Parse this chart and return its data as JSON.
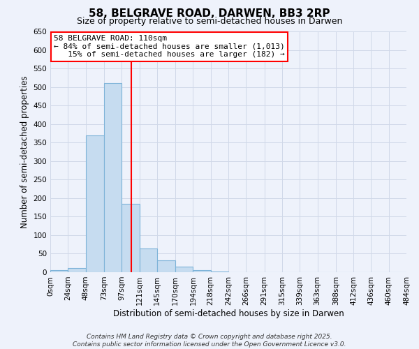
{
  "title": "58, BELGRAVE ROAD, DARWEN, BB3 2RP",
  "subtitle": "Size of property relative to semi-detached houses in Darwen",
  "xlabel": "Distribution of semi-detached houses by size in Darwen",
  "ylabel": "Number of semi-detached properties",
  "bin_edges": [
    0,
    24,
    48,
    73,
    97,
    121,
    145,
    170,
    194,
    218,
    242,
    266,
    291,
    315,
    339,
    363,
    388,
    412,
    436,
    460,
    484
  ],
  "bin_labels": [
    "0sqm",
    "24sqm",
    "48sqm",
    "73sqm",
    "97sqm",
    "121sqm",
    "145sqm",
    "170sqm",
    "194sqm",
    "218sqm",
    "242sqm",
    "266sqm",
    "291sqm",
    "315sqm",
    "339sqm",
    "363sqm",
    "388sqm",
    "412sqm",
    "436sqm",
    "460sqm",
    "484sqm"
  ],
  "counts": [
    5,
    12,
    370,
    510,
    185,
    65,
    32,
    16,
    5,
    1,
    0,
    0,
    0,
    0,
    0,
    0,
    0,
    0,
    0,
    0
  ],
  "bar_color": "#c6dcf0",
  "bar_edge_color": "#7db3d8",
  "vline_x": 110,
  "vline_color": "red",
  "annotation_line1": "58 BELGRAVE ROAD: 110sqm",
  "annotation_line2": "← 84% of semi-detached houses are smaller (1,013)",
  "annotation_line3": "   15% of semi-detached houses are larger (182) →",
  "annotation_box_color": "white",
  "annotation_box_edge_color": "red",
  "ylim": [
    0,
    650
  ],
  "yticks": [
    0,
    50,
    100,
    150,
    200,
    250,
    300,
    350,
    400,
    450,
    500,
    550,
    600,
    650
  ],
  "background_color": "#eef2fb",
  "grid_color": "#d0d8e8",
  "footer_line1": "Contains HM Land Registry data © Crown copyright and database right 2025.",
  "footer_line2": "Contains public sector information licensed under the Open Government Licence v3.0.",
  "title_fontsize": 11,
  "subtitle_fontsize": 9,
  "axis_label_fontsize": 8.5,
  "tick_fontsize": 7.5,
  "annotation_fontsize": 8,
  "footer_fontsize": 6.5
}
